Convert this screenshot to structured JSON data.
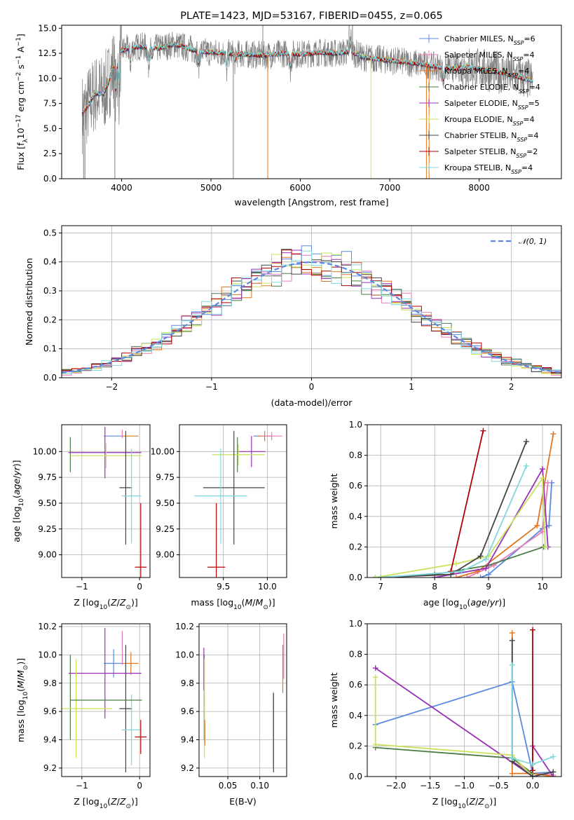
{
  "colors": {
    "Chabrier MILES": "#5a8ae0",
    "Salpeter MILES": "#e87ab8",
    "Kroupa MILES": "#e3761e",
    "Chabrier ELODIE": "#4d7d47",
    "Salpeter ELODIE": "#9a2fb8",
    "Kroupa ELODIE": "#c8e25a",
    "Chabrier STELIB": "#444444",
    "Salpeter STELIB": "#b30000",
    "Kroupa STELIB": "#7fd8e0"
  },
  "chart_data": [
    {
      "id": "spectrum",
      "type": "line",
      "title": "PLATE=1423, MJD=53167, FIBERID=0455, z=0.065",
      "xlabel": "wavelength [Angstrom, rest frame]",
      "ylabel": "Flux [f$_\\lambda$10$^{-17}$ erg cm$^{-2}$ s$^{-1}$ A$^{-1}$]",
      "ylabel_parts": {
        "a": "Flux [f",
        "b": "λ",
        "c": "10",
        "d": "−17",
        "e": " erg cm",
        "f": "−2",
        "g": " s",
        "h": "−1",
        "i": " A",
        "j": "−1",
        "k": "]"
      },
      "xlim": [
        3330,
        8920
      ],
      "ylim": [
        0,
        15.3
      ],
      "xticks": [
        4000,
        5000,
        6000,
        7000,
        8000
      ],
      "yticks": [
        0.0,
        2.5,
        5.0,
        7.5,
        10.0,
        12.5,
        15.0
      ],
      "grid": false,
      "legend_position": "upper-right",
      "legend": [
        {
          "base": "Chabrier MILES, N",
          "sub": "SSP",
          "tail": "=6",
          "color": "#5a8ae0"
        },
        {
          "base": "Salpeter MILES, N",
          "sub": "SSP",
          "tail": "=4",
          "color": "#e87ab8"
        },
        {
          "base": "Kroupa MILES, N",
          "sub": "SSP",
          "tail": "=4",
          "color": "#e3761e"
        },
        {
          "base": "Chabrier ELODIE, N",
          "sub": "SSP",
          "tail": "=4",
          "color": "#4d7d47"
        },
        {
          "base": "Salpeter ELODIE, N",
          "sub": "SSP",
          "tail": "=5",
          "color": "#9a2fb8"
        },
        {
          "base": "Kroupa ELODIE, N",
          "sub": "SSP",
          "tail": "=4",
          "color": "#c8e25a"
        },
        {
          "base": "Chabrier STELIB, N",
          "sub": "SSP",
          "tail": "=4",
          "color": "#444444"
        },
        {
          "base": "Salpeter STELIB, N",
          "sub": "SSP",
          "tail": "=2",
          "color": "#b30000"
        },
        {
          "base": "Kroupa STELIB, N",
          "sub": "SSP",
          "tail": "=4",
          "color": "#7fd8e0"
        }
      ],
      "continuum": [
        [
          3560,
          6.5
        ],
        [
          3620,
          7.2
        ],
        [
          3700,
          8.5
        ],
        [
          3800,
          8.5
        ],
        [
          3850,
          9.5
        ],
        [
          3900,
          11.0
        ],
        [
          3950,
          11.5
        ],
        [
          4000,
          12.8
        ],
        [
          4100,
          13.0
        ],
        [
          4200,
          13.2
        ],
        [
          4400,
          13.0
        ],
        [
          4600,
          13.4
        ],
        [
          4860,
          12.7
        ],
        [
          5000,
          12.6
        ],
        [
          5200,
          12.5
        ],
        [
          5400,
          12.4
        ],
        [
          5600,
          12.3
        ],
        [
          5800,
          12.5
        ],
        [
          6000,
          12.4
        ],
        [
          6200,
          12.6
        ],
        [
          6400,
          12.5
        ],
        [
          6563,
          12.7
        ],
        [
          6700,
          12.1
        ],
        [
          6900,
          11.9
        ],
        [
          7100,
          11.7
        ],
        [
          7300,
          11.5
        ],
        [
          7500,
          11.2
        ],
        [
          7700,
          11.0
        ],
        [
          7900,
          11.1
        ],
        [
          8100,
          10.8
        ],
        [
          8300,
          10.5
        ],
        [
          8500,
          10.0
        ],
        [
          8600,
          9.8
        ]
      ],
      "absorption": [
        [
          3934,
          -3.2
        ],
        [
          3969,
          -3.0
        ],
        [
          4101,
          -1.5
        ],
        [
          4300,
          -1.8
        ],
        [
          4340,
          -1.2
        ],
        [
          4861,
          -1.5
        ],
        [
          5175,
          -1.8
        ],
        [
          5270,
          -0.8
        ],
        [
          5890,
          -1.6
        ],
        [
          6563,
          1.2
        ],
        [
          7600,
          -1.5
        ]
      ],
      "spikes": [
        [
          3575,
          0.0
        ],
        [
          3590,
          0.0
        ],
        [
          3925,
          0.0
        ],
        [
          5250,
          0.0
        ],
        [
          5635,
          0.0
        ],
        [
          6790,
          0.0
        ],
        [
          7410,
          0.0
        ],
        [
          7440,
          0.0
        ],
        [
          6545,
          15.3
        ],
        [
          6583,
          15.3
        ],
        [
          5580,
          15.3
        ]
      ],
      "data_line": {
        "name": "data",
        "color": "#808080",
        "noise": 1.6
      }
    },
    {
      "id": "residuals",
      "type": "histogram",
      "xlabel": "(data-model)/error",
      "ylabel": "Normed distribution",
      "xlim": [
        -2.5,
        2.5
      ],
      "ylim": [
        0,
        0.525
      ],
      "xticks": [
        -2,
        -1,
        0,
        1,
        2
      ],
      "yticks": [
        0.0,
        0.1,
        0.2,
        0.3,
        0.4,
        0.5
      ],
      "grid": true,
      "legend_position": "upper-right",
      "legend": [
        {
          "label": "𝒩(0, 1)",
          "color": "#5a8ae0",
          "style": "dashed"
        }
      ],
      "bin_width": 0.1
    },
    {
      "id": "age-vs-Z",
      "type": "errorbar",
      "xlabel": "Z [log10(Z/Z⊙)]",
      "ylabel": "age  [log10(age/yr)]",
      "xlim": [
        -1.35,
        0.18
      ],
      "ylim": [
        8.78,
        10.26
      ],
      "xticks": [
        -1,
        0
      ],
      "yticks": [
        9.0,
        9.25,
        9.5,
        9.75,
        10.0
      ],
      "ytick_labels": [
        "9.00",
        "9.25",
        "9.50",
        "9.75",
        "10.00"
      ],
      "grid": true,
      "points": [
        {
          "series": "Chabrier MILES",
          "x": -0.45,
          "xerr": 0.17,
          "y": 10.15,
          "yerr": 0.0
        },
        {
          "series": "Kroupa MILES",
          "x": -0.15,
          "xerr": 0.13,
          "y": 10.15,
          "yerr": 0.0
        },
        {
          "series": "Chabrier ELODIE",
          "x": -1.2,
          "xerr": 0.0,
          "y": 9.97,
          "yerr": 0.17
        },
        {
          "series": "Salpeter ELODIE",
          "x": -0.6,
          "xerr": 0.63,
          "y": 9.99,
          "yerr": 0.25
        },
        {
          "series": "Kroupa ELODIE",
          "x": -0.58,
          "xerr": 0.62,
          "y": 9.96,
          "yerr": 0.12
        },
        {
          "series": "Chabrier STELIB",
          "x": -0.24,
          "xerr": 0.11,
          "y": 9.65,
          "yerr": 0.55
        },
        {
          "series": "Kroupa STELIB",
          "x": -0.14,
          "xerr": 0.17,
          "y": 9.57,
          "yerr": 0.46
        },
        {
          "series": "Salpeter STELIB",
          "x": 0.02,
          "xerr": 0.1,
          "y": 8.88,
          "yerr": 0.62
        },
        {
          "series": "Salpeter MILES",
          "x": -0.3,
          "xerr": 0.0,
          "y": 10.17,
          "yerr": 0.04
        }
      ]
    },
    {
      "id": "age-vs-mass",
      "type": "errorbar",
      "xlabel": "mass [log10(M/M⊙)]",
      "ylabel": "",
      "xlim": [
        9.0,
        10.22
      ],
      "ylim": [
        8.78,
        10.26
      ],
      "xticks": [
        9.5,
        10.0
      ],
      "xtick_labels": [
        "9.5",
        "10.0"
      ],
      "yticks": [
        9.0,
        9.25,
        9.5,
        9.75,
        10.0
      ],
      "ytick_labels": [
        "9.00",
        "9.25",
        "9.50",
        "9.75",
        "10.00"
      ],
      "grid": true,
      "points": [
        {
          "series": "Chabrier MILES",
          "x": 9.94,
          "xerr": 0.1,
          "y": 10.15,
          "yerr": 0.0
        },
        {
          "series": "Kroupa MILES",
          "x": 9.97,
          "xerr": 0.08,
          "y": 10.15,
          "yerr": 0.05
        },
        {
          "series": "Salpeter MILES",
          "x": 10.05,
          "xerr": 0.12,
          "y": 10.15,
          "yerr": 0.04
        },
        {
          "series": "Chabrier ELODIE",
          "x": 9.66,
          "xerr": 0.0,
          "y": 9.97,
          "yerr": 0.17
        },
        {
          "series": "Salpeter ELODIE",
          "x": 9.82,
          "xerr": 0.16,
          "y": 10.0,
          "yerr": 0.15
        },
        {
          "series": "Kroupa ELODIE",
          "x": 9.67,
          "xerr": 0.3,
          "y": 9.97,
          "yerr": 0.1
        },
        {
          "series": "Chabrier STELIB",
          "x": 9.62,
          "xerr": 0.35,
          "y": 9.65,
          "yerr": 0.55
        },
        {
          "series": "Kroupa STELIB",
          "x": 9.47,
          "xerr": 0.3,
          "y": 9.57,
          "yerr": 0.46
        },
        {
          "series": "Salpeter STELIB",
          "x": 9.42,
          "xerr": 0.1,
          "y": 8.88,
          "yerr": 0.62
        }
      ]
    },
    {
      "id": "weight-vs-age",
      "type": "line",
      "xlabel": "age  [log10(age/yr)]",
      "ylabel": "mass weight",
      "xlim": [
        6.75,
        10.35
      ],
      "ylim": [
        0,
        1.0
      ],
      "xticks": [
        7,
        8,
        9,
        10
      ],
      "yticks": [
        0.0,
        0.2,
        0.4,
        0.6,
        0.8,
        1.0
      ],
      "ytick_labels": [
        "0.0",
        "0.2",
        "0.4",
        "0.6",
        "0.8",
        "1.0"
      ],
      "grid": true,
      "series": [
        {
          "name": "Chabrier MILES",
          "x": [
            8.85,
            9.0,
            10.0,
            10.12,
            10.17
          ],
          "y": [
            0.0,
            0.02,
            0.32,
            0.34,
            0.62
          ]
        },
        {
          "name": "Salpeter MILES",
          "x": [
            8.6,
            9.1,
            10.0,
            10.1
          ],
          "y": [
            0.0,
            0.08,
            0.3,
            0.62
          ]
        },
        {
          "name": "Kroupa MILES",
          "x": [
            8.4,
            8.8,
            9.9,
            10.2
          ],
          "y": [
            0.0,
            0.04,
            0.34,
            0.94
          ]
        },
        {
          "name": "Chabrier ELODIE",
          "x": [
            6.9,
            8.0,
            9.0,
            10.02
          ],
          "y": [
            0.0,
            0.02,
            0.08,
            0.2
          ]
        },
        {
          "name": "Salpeter ELODIE",
          "x": [
            8.0,
            8.95,
            10.0,
            10.1
          ],
          "y": [
            0.0,
            0.06,
            0.71,
            0.2
          ]
        },
        {
          "name": "Kroupa ELODIE",
          "x": [
            6.9,
            8.4,
            9.0,
            10.0,
            10.05
          ],
          "y": [
            0.0,
            0.09,
            0.14,
            0.65,
            0.2
          ]
        },
        {
          "name": "Chabrier STELIB",
          "x": [
            7.0,
            8.3,
            8.85,
            9.7
          ],
          "y": [
            0.0,
            0.02,
            0.14,
            0.89
          ]
        },
        {
          "name": "Salpeter STELIB",
          "x": [
            8.3,
            8.9
          ],
          "y": [
            0.04,
            0.96
          ]
        },
        {
          "name": "Kroupa STELIB",
          "x": [
            7.0,
            8.5,
            8.95,
            9.7
          ],
          "y": [
            0.0,
            0.04,
            0.12,
            0.73
          ]
        }
      ]
    },
    {
      "id": "mass-vs-Z",
      "type": "errorbar",
      "xlabel": "Z [log10(Z/Z⊙)]",
      "ylabel": "mass [log10(M/M⊙)]",
      "xlim": [
        -1.35,
        0.18
      ],
      "ylim": [
        9.14,
        10.22
      ],
      "xticks": [
        -1,
        0
      ],
      "yticks": [
        9.2,
        9.4,
        9.6,
        9.8,
        10.0,
        10.2
      ],
      "ytick_labels": [
        "9.2",
        "9.4",
        "9.6",
        "9.8",
        "10.0",
        "10.2"
      ],
      "grid": true,
      "points": [
        {
          "series": "Chabrier MILES",
          "x": -0.45,
          "xerr": 0.17,
          "y": 9.94,
          "yerr": 0.1
        },
        {
          "series": "Salpeter MILES",
          "x": -0.3,
          "xerr": 0.0,
          "y": 10.05,
          "yerr": 0.12
        },
        {
          "series": "Kroupa MILES",
          "x": -0.15,
          "xerr": 0.13,
          "y": 9.94,
          "yerr": 0.08
        },
        {
          "series": "Chabrier ELODIE",
          "x": -1.2,
          "xerr": 0.0,
          "y": 9.7,
          "yerr": 0.3
        },
        {
          "series": "Salpeter ELODIE",
          "x": -0.6,
          "xerr": 0.63,
          "y": 9.87,
          "yerr": 0.32
        },
        {
          "series": "Kroupa ELODIE",
          "x": -1.1,
          "xerr": 0.62,
          "y": 9.62,
          "yerr": 0.35
        },
        {
          "series": "Chabrier STELIB",
          "x": -0.24,
          "xerr": 0.11,
          "y": 9.62,
          "yerr": 0.45
        },
        {
          "series": "Kroupa STELIB",
          "x": -0.14,
          "xerr": 0.17,
          "y": 9.47,
          "yerr": 0.25
        },
        {
          "series": "Salpeter STELIB",
          "x": 0.02,
          "xerr": 0.1,
          "y": 9.42,
          "yerr": 0.12
        },
        {
          "series": "Chabrier ELODIE",
          "x": -0.58,
          "xerr": 0.62,
          "y": 9.68,
          "yerr": 0.0
        }
      ]
    },
    {
      "id": "mass-vs-ebv",
      "type": "errorbar",
      "xlabel": "E(B-V)",
      "ylabel": "",
      "xlim": [
        0.005,
        0.142
      ],
      "ylim": [
        9.14,
        10.22
      ],
      "xticks": [
        0.05,
        0.1
      ],
      "xtick_labels": [
        "0.05",
        "0.10"
      ],
      "yticks": [
        9.2,
        9.4,
        9.6,
        9.8,
        10.0,
        10.2
      ],
      "ytick_labels": [
        "9.2",
        "9.4",
        "9.6",
        "9.8",
        "10.0",
        "10.2"
      ],
      "grid": true,
      "points": [
        {
          "series": "Salpeter ELODIE",
          "x": 0.0125,
          "xerr": 0,
          "y": 9.9,
          "yerr": 0.15
        },
        {
          "series": "Chabrier ELODIE",
          "x": 0.013,
          "xerr": 0,
          "y": 9.7,
          "yerr": 0.3
        },
        {
          "series": "Kroupa ELODIE",
          "x": 0.0135,
          "xerr": 0,
          "y": 9.62,
          "yerr": 0.35
        },
        {
          "series": "Kroupa MILES",
          "x": 0.014,
          "xerr": 0,
          "y": 9.45,
          "yerr": 0.09
        },
        {
          "series": "Kroupa STELIB",
          "x": 0.121,
          "xerr": 0,
          "y": 9.47,
          "yerr": 0.27
        },
        {
          "series": "Chabrier STELIB",
          "x": 0.1215,
          "xerr": 0,
          "y": 9.45,
          "yerr": 0.28
        },
        {
          "series": "Kroupa MILES",
          "x": 0.136,
          "xerr": 0,
          "y": 9.9,
          "yerr": 0.17
        },
        {
          "series": "Salpeter MILES",
          "x": 0.1375,
          "xerr": 0,
          "y": 9.99,
          "yerr": 0.16
        }
      ]
    },
    {
      "id": "weight-vs-Z",
      "type": "line",
      "xlabel": "Z [log10(Z/Z⊙)]",
      "ylabel": "mass weight",
      "xlim": [
        -2.42,
        0.42
      ],
      "ylim": [
        0,
        1.0
      ],
      "xticks": [
        -2.0,
        -1.5,
        -1.0,
        -0.5,
        0.0
      ],
      "xtick_labels": [
        "−2.0",
        "−1.5",
        "−1.0",
        "−0.5",
        "0.0"
      ],
      "yticks": [
        0.0,
        0.2,
        0.4,
        0.6,
        0.8,
        1.0
      ],
      "ytick_labels": [
        "0.0",
        "0.2",
        "0.4",
        "0.6",
        "0.8",
        "1.0"
      ],
      "grid": true,
      "series": [
        {
          "name": "Chabrier MILES",
          "x": [
            -2.3,
            -0.3,
            0.0,
            0.3
          ],
          "y": [
            0.34,
            0.62,
            0.02,
            0.03
          ]
        },
        {
          "name": "Salpeter MILES",
          "x": [
            -0.3,
            0.0,
            0.3
          ],
          "y": [
            0.1,
            0.02,
            0.01
          ]
        },
        {
          "name": "Kroupa MILES",
          "x": [
            -0.3,
            -0.3,
            0.0,
            0.3
          ],
          "y": [
            0.94,
            0.02,
            0.02,
            0.0
          ]
        },
        {
          "name": "Chabrier ELODIE",
          "x": [
            -2.3,
            -0.3,
            0.0
          ],
          "y": [
            0.19,
            0.12,
            0.02
          ]
        },
        {
          "name": "Salpeter ELODIE",
          "x": [
            -2.3,
            0.0,
            0.0,
            0.3
          ],
          "y": [
            0.71,
            0.0,
            0.2,
            0.0
          ]
        },
        {
          "name": "Kroupa ELODIE",
          "x": [
            -2.3,
            -2.3,
            -0.3,
            0.0,
            0.0
          ],
          "y": [
            0.65,
            0.21,
            0.14,
            0.0,
            0.08
          ]
        },
        {
          "name": "Chabrier STELIB",
          "x": [
            -0.3,
            -0.3,
            0.0,
            0.3
          ],
          "y": [
            0.89,
            0.1,
            0.0,
            0.03
          ]
        },
        {
          "name": "Salpeter STELIB",
          "x": [
            0.0,
            0.0
          ],
          "y": [
            0.96,
            0.04
          ]
        },
        {
          "name": "Kroupa STELIB",
          "x": [
            -0.3,
            -0.3,
            0.0,
            0.3
          ],
          "y": [
            0.73,
            0.12,
            0.08,
            0.13
          ]
        }
      ]
    }
  ]
}
